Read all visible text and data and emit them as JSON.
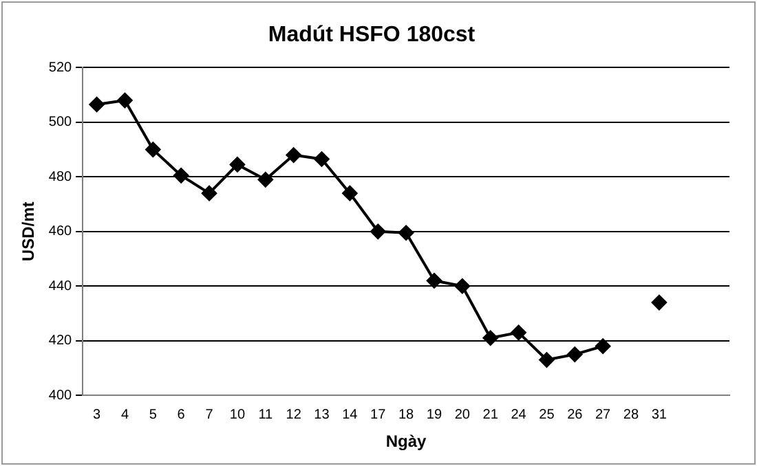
{
  "chart_data": {
    "type": "line",
    "title": "Madút HSFO 180cst",
    "xlabel": "Ngày",
    "ylabel": "USD/mt",
    "categories": [
      "3",
      "4",
      "5",
      "6",
      "7",
      "10",
      "11",
      "12",
      "13",
      "14",
      "17",
      "18",
      "19",
      "20",
      "21",
      "24",
      "25",
      "26",
      "27",
      "28",
      "31",
      null,
      null
    ],
    "series": [
      {
        "color": "#000000",
        "values": [
          506.5,
          508,
          490,
          480.5,
          474,
          484.5,
          479,
          488,
          486.5,
          474,
          460,
          459.5,
          442,
          440,
          421,
          423,
          413,
          415,
          418,
          null,
          434,
          null,
          null
        ]
      }
    ],
    "ylim": [
      400,
      520
    ],
    "yticks": [
      400,
      420,
      440,
      460,
      480,
      500,
      520
    ],
    "grid": "y",
    "legend": false,
    "marker": "diamond",
    "line_style": "solid"
  }
}
